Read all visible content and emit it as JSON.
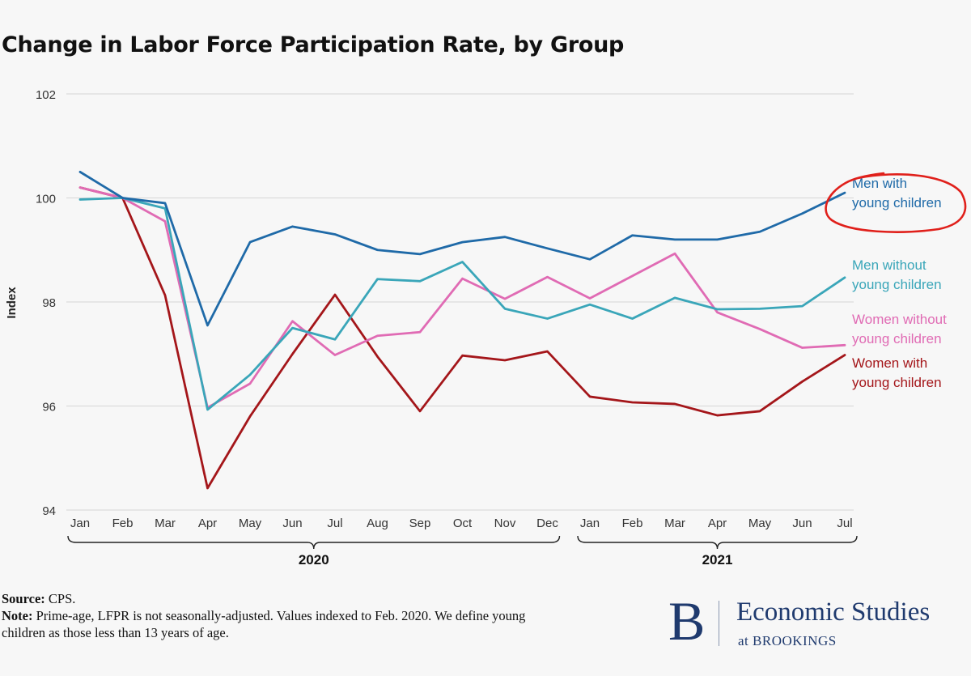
{
  "chart_data": {
    "type": "line",
    "title": "Change in Labor Force Participation Rate, by Group",
    "ylabel": "Index",
    "ylim": [
      94,
      102
    ],
    "yticks": [
      94,
      96,
      98,
      100,
      102
    ],
    "grid": "horizontal",
    "x": [
      "Jan",
      "Feb",
      "Mar",
      "Apr",
      "May",
      "Jun",
      "Jul",
      "Aug",
      "Sep",
      "Oct",
      "Nov",
      "Dec",
      "Jan",
      "Feb",
      "Mar",
      "Apr",
      "May",
      "Jun",
      "Jul"
    ],
    "year_groups": [
      {
        "label": "2020",
        "start": 0,
        "end": 11
      },
      {
        "label": "2021",
        "start": 12,
        "end": 18
      }
    ],
    "series": [
      {
        "name": "Men with young children",
        "label_lines": [
          "Men with",
          "young children"
        ],
        "color": "#1f6aa8",
        "values": [
          100.5,
          100.0,
          99.9,
          97.55,
          99.15,
          99.45,
          99.3,
          99.0,
          98.92,
          99.15,
          99.25,
          99.03,
          98.82,
          99.28,
          99.2,
          99.2,
          99.35,
          99.7,
          100.1
        ]
      },
      {
        "name": "Men without young children",
        "label_lines": [
          "Men without",
          "young children"
        ],
        "color": "#3aa6b9",
        "values": [
          99.97,
          100.0,
          99.8,
          95.93,
          96.6,
          97.5,
          97.28,
          98.44,
          98.4,
          98.77,
          97.87,
          97.68,
          97.95,
          97.68,
          98.08,
          97.86,
          97.87,
          97.92,
          98.47
        ]
      },
      {
        "name": "Women without young children",
        "label_lines": [
          "Women without",
          "young children"
        ],
        "color": "#e06bb4",
        "values": [
          100.2,
          100.0,
          99.55,
          95.97,
          96.43,
          97.63,
          96.98,
          97.35,
          97.42,
          98.45,
          98.06,
          98.48,
          98.07,
          98.5,
          98.93,
          97.8,
          97.48,
          97.12,
          97.17
        ]
      },
      {
        "name": "Women with young children",
        "label_lines": [
          "Women with",
          "young children"
        ],
        "color": "#a4161a",
        "values": [
          100.2,
          100.0,
          98.13,
          94.42,
          95.8,
          97.0,
          98.14,
          96.95,
          95.9,
          96.97,
          96.88,
          97.05,
          96.18,
          96.07,
          96.04,
          95.82,
          95.9,
          96.47,
          96.98
        ]
      }
    ]
  },
  "footer": {
    "source_label": "Source:",
    "source_text": "CPS.",
    "note_label": "Note:",
    "note_text": "Prime-age, LFPR is not seasonally-adjusted. Values indexed to Feb. 2020. We define young children as those less than 13 years of age."
  },
  "logo": {
    "letter": "B",
    "main": "Economic Studies",
    "sub": "at BROOKINGS",
    "color": "#1f3a6e"
  },
  "annotation": {
    "circle_color": "#e0201b"
  }
}
